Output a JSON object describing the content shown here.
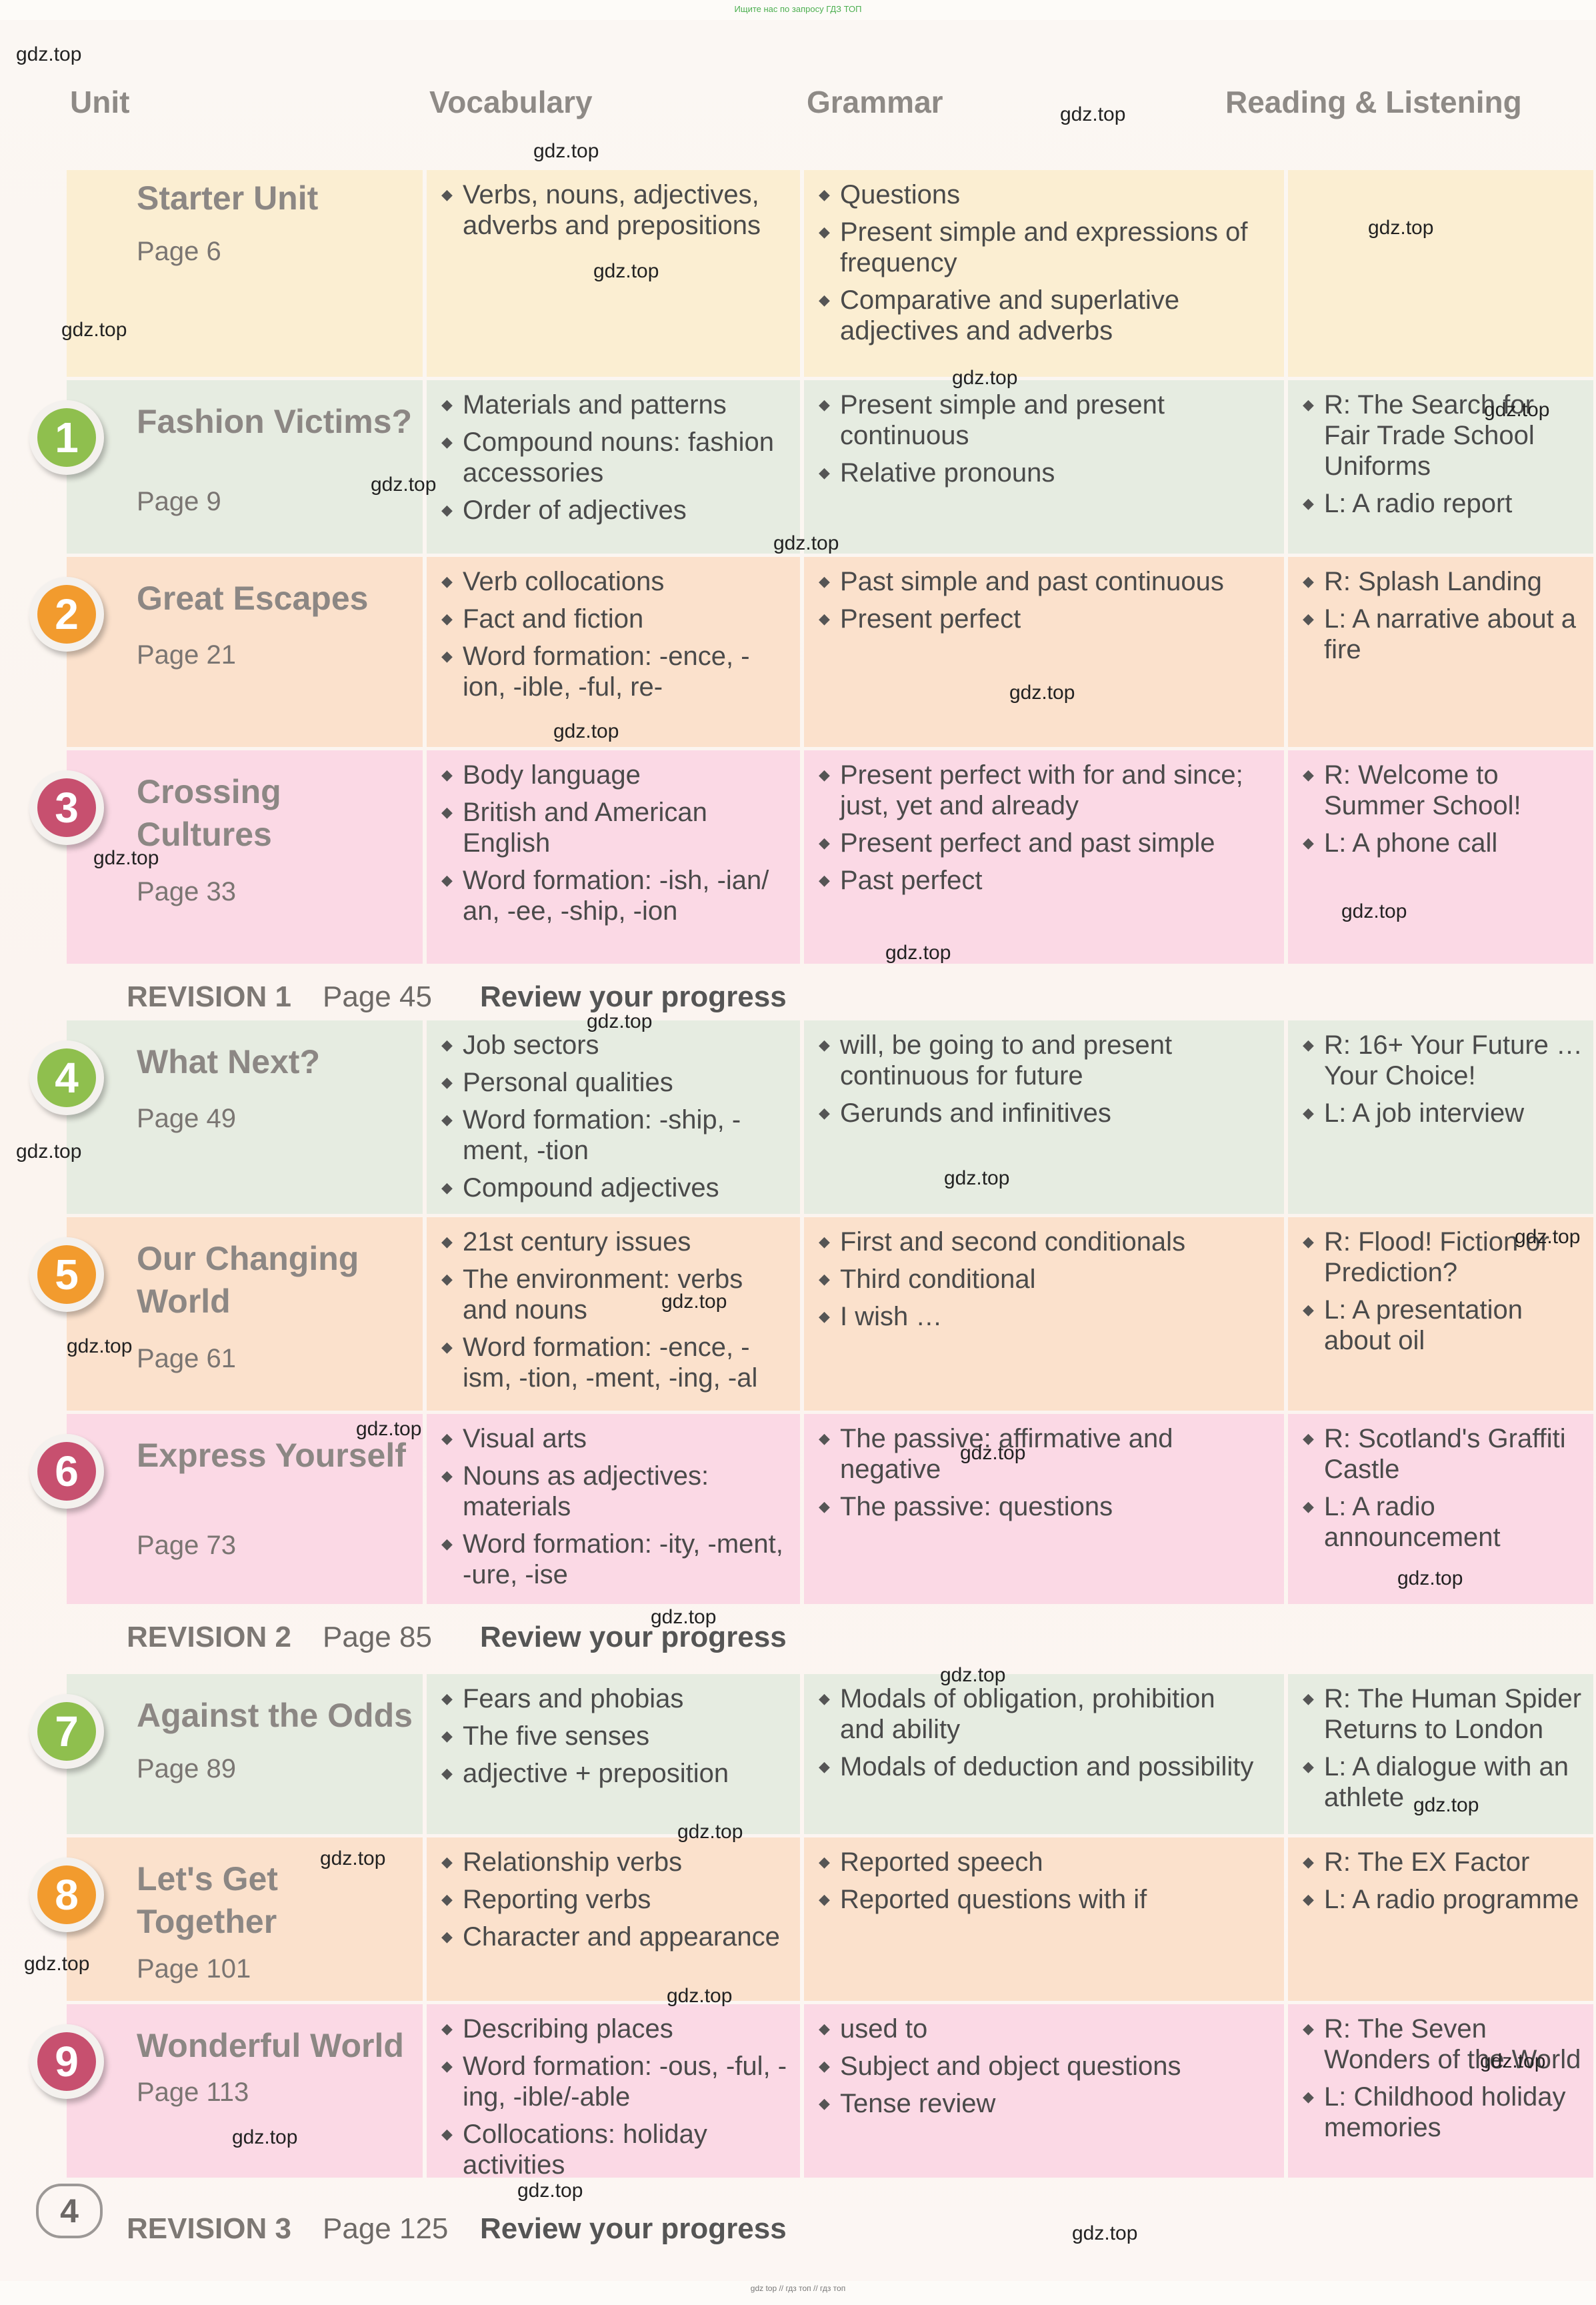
{
  "top_note": "Ищите нас по запросу ГДЗ ТОП",
  "bottom_note": "gdz top // гдз топ // гдз топ",
  "headers": {
    "unit": "Unit",
    "vocabulary": "Vocabulary",
    "grammar": "Grammar",
    "reading": "Reading & Listening"
  },
  "units": [
    {
      "num": "",
      "title": "Starter Unit",
      "page": "Page 6",
      "vocabulary": [
        "Verbs, nouns, adjectives, adverbs and prepositions"
      ],
      "grammar": [
        "Questions",
        "Present simple and expressions of frequency",
        "Comparative and superlative adjectives and adverbs"
      ],
      "reading": []
    },
    {
      "num": "1",
      "title": "Fashion Victims?",
      "page": "Page 9",
      "vocabulary": [
        "Materials and patterns",
        "Compound nouns: fashion accessories",
        "Order of adjectives"
      ],
      "grammar": [
        "Present simple and present continuous",
        "Relative pronouns"
      ],
      "reading": [
        "R: The Search for Fair Trade School Uniforms",
        "L: A radio report"
      ]
    },
    {
      "num": "2",
      "title": "Great Escapes",
      "page": "Page 21",
      "vocabulary": [
        "Verb collocations",
        "Fact and fiction",
        "Word formation: -ence, -ion, -ible, -ful, re-"
      ],
      "grammar": [
        "Past simple and past continuous",
        "Present perfect"
      ],
      "reading": [
        "R: Splash Landing",
        "L: A narrative about a fire"
      ]
    },
    {
      "num": "3",
      "title": "Crossing Cultures",
      "page": "Page 33",
      "vocabulary": [
        "Body language",
        "British and American English",
        "Word formation: -ish, -ian/ an, -ee, -ship, -ion"
      ],
      "grammar": [
        "Present perfect with for and since; just, yet and already",
        "Present perfect and past simple",
        "Past perfect"
      ],
      "reading": [
        "R: Welcome to Summer School!",
        "L: A phone call"
      ]
    },
    {
      "num": "4",
      "title": "What Next?",
      "page": "Page 49",
      "vocabulary": [
        "Job sectors",
        "Personal qualities",
        "Word formation: -ship, -ment, -tion",
        "Compound adjectives"
      ],
      "grammar": [
        "will, be going to and present continuous for future",
        "Gerunds and infinitives"
      ],
      "reading": [
        "R: 16+ Your Future … Your Choice!",
        "L: A job interview"
      ]
    },
    {
      "num": "5",
      "title": "Our Changing World",
      "page": "Page 61",
      "vocabulary": [
        "21st century issues",
        "The environment: verbs and nouns",
        "Word formation: -ence, -ism, -tion, -ment, -ing, -al"
      ],
      "grammar": [
        "First and second conditionals",
        "Third conditional",
        "I wish …"
      ],
      "reading": [
        "R: Flood! Fiction or Prediction?",
        "L: A presentation about oil"
      ]
    },
    {
      "num": "6",
      "title": "Express Yourself",
      "page": "Page 73",
      "vocabulary": [
        "Visual arts",
        "Nouns as adjectives: materials",
        "Word formation: -ity, -ment, -ure, -ise"
      ],
      "grammar": [
        "The passive: affirmative and negative",
        "The passive: questions"
      ],
      "reading": [
        "R: Scotland's Graffiti Castle",
        "L: A radio announcement"
      ]
    },
    {
      "num": "7",
      "title": "Against the Odds",
      "page": "Page 89",
      "vocabulary": [
        "Fears and phobias",
        "The five senses",
        "adjective + preposition"
      ],
      "grammar": [
        "Modals of obligation, prohibition and ability",
        "Modals of deduction and possibility"
      ],
      "reading": [
        "R: The Human Spider Returns to London",
        "L: A dialogue with an athlete"
      ]
    },
    {
      "num": "8",
      "title": "Let's Get Together",
      "page": "Page 101",
      "vocabulary": [
        "Relationship verbs",
        "Reporting verbs",
        "Character and appearance"
      ],
      "grammar": [
        "Reported speech",
        "Reported questions with if"
      ],
      "reading": [
        "R: The EX Factor",
        "L: A radio programme"
      ]
    },
    {
      "num": "9",
      "title": "Wonderful World",
      "page": "Page 113",
      "vocabulary": [
        "Describing places",
        "Word formation: -ous, -ful, -ing, -ible/-able",
        "Collocations: holiday activities"
      ],
      "grammar": [
        "used to",
        "Subject and object questions",
        "Tense review"
      ],
      "reading": [
        "R: The Seven Wonders of the World",
        "L: Childhood holiday memories"
      ]
    }
  ],
  "revisions": [
    {
      "label": "REVISION 1",
      "page": "Page 45",
      "review": "Review your progress"
    },
    {
      "label": "REVISION 2",
      "page": "Page 85",
      "review": "Review your progress"
    },
    {
      "label": "REVISION 3",
      "page": "Page 125",
      "review": "Review your progress"
    }
  ],
  "page_number": "4",
  "watermark": "gdz.top",
  "colors": {
    "green": "#8fbf4e",
    "orange": "#f29b2e",
    "pink": "#c7506f"
  }
}
